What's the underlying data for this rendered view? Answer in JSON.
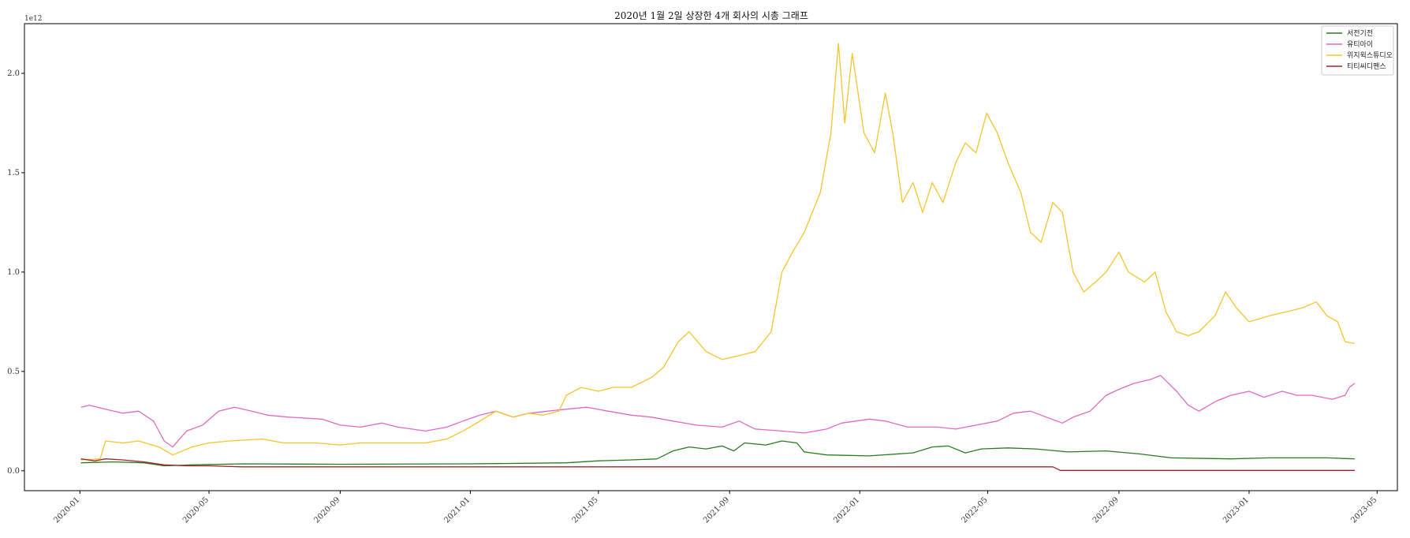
{
  "chart_data": {
    "type": "line",
    "title": "2020년 1월 2일 상장한 4개 회사의 시총 그래프",
    "xlabel": "",
    "ylabel": "",
    "y_offset_label": "1e12",
    "x_ticks": [
      "2020-01",
      "2020-05",
      "2020-09",
      "2021-01",
      "2021-05",
      "2021-09",
      "2022-01",
      "2022-05",
      "2022-09",
      "2023-01",
      "2023-05"
    ],
    "y_ticks": [
      "0.0",
      "0.5",
      "1.0",
      "1.5",
      "2.0"
    ],
    "xlim": [
      "2019-11-10",
      "2023-05-20"
    ],
    "ylim": [
      -0.1,
      2.25
    ],
    "legend_position": "top-right",
    "grid": false,
    "series": [
      {
        "name": "서전기전",
        "color": "#2a7a1f",
        "points": [
          [
            "2020-01-02",
            0.04
          ],
          [
            "2020-02-01",
            0.045
          ],
          [
            "2020-03-01",
            0.04
          ],
          [
            "2020-03-20",
            0.025
          ],
          [
            "2020-04-15",
            0.03
          ],
          [
            "2020-06-01",
            0.035
          ],
          [
            "2020-09-01",
            0.033
          ],
          [
            "2021-01-01",
            0.035
          ],
          [
            "2021-04-01",
            0.04
          ],
          [
            "2021-05-01",
            0.05
          ],
          [
            "2021-06-01",
            0.055
          ],
          [
            "2021-06-25",
            0.06
          ],
          [
            "2021-07-10",
            0.1
          ],
          [
            "2021-07-25",
            0.12
          ],
          [
            "2021-08-10",
            0.11
          ],
          [
            "2021-08-25",
            0.125
          ],
          [
            "2021-09-05",
            0.1
          ],
          [
            "2021-09-15",
            0.14
          ],
          [
            "2021-10-05",
            0.13
          ],
          [
            "2021-10-20",
            0.15
          ],
          [
            "2021-11-03",
            0.14
          ],
          [
            "2021-11-10",
            0.095
          ],
          [
            "2021-12-01",
            0.08
          ],
          [
            "2022-01-10",
            0.075
          ],
          [
            "2022-02-20",
            0.09
          ],
          [
            "2022-03-10",
            0.12
          ],
          [
            "2022-03-25",
            0.125
          ],
          [
            "2022-04-10",
            0.09
          ],
          [
            "2022-04-25",
            0.11
          ],
          [
            "2022-05-20",
            0.115
          ],
          [
            "2022-06-15",
            0.11
          ],
          [
            "2022-07-15",
            0.095
          ],
          [
            "2022-08-20",
            0.1
          ],
          [
            "2022-09-20",
            0.085
          ],
          [
            "2022-10-20",
            0.065
          ],
          [
            "2022-12-15",
            0.06
          ],
          [
            "2023-01-20",
            0.065
          ],
          [
            "2023-03-15",
            0.065
          ],
          [
            "2023-04-10",
            0.06
          ]
        ]
      },
      {
        "name": "유티아이",
        "color": "#e069c2",
        "points": [
          [
            "2020-01-02",
            0.32
          ],
          [
            "2020-01-10",
            0.33
          ],
          [
            "2020-01-25",
            0.31
          ],
          [
            "2020-02-10",
            0.29
          ],
          [
            "2020-02-25",
            0.3
          ],
          [
            "2020-03-10",
            0.25
          ],
          [
            "2020-03-20",
            0.15
          ],
          [
            "2020-03-28",
            0.12
          ],
          [
            "2020-04-10",
            0.2
          ],
          [
            "2020-04-25",
            0.23
          ],
          [
            "2020-05-10",
            0.3
          ],
          [
            "2020-05-25",
            0.32
          ],
          [
            "2020-06-10",
            0.3
          ],
          [
            "2020-06-25",
            0.28
          ],
          [
            "2020-07-15",
            0.27
          ],
          [
            "2020-08-15",
            0.26
          ],
          [
            "2020-09-01",
            0.23
          ],
          [
            "2020-09-20",
            0.22
          ],
          [
            "2020-10-10",
            0.24
          ],
          [
            "2020-10-25",
            0.22
          ],
          [
            "2020-11-20",
            0.2
          ],
          [
            "2020-12-10",
            0.22
          ],
          [
            "2020-12-25",
            0.25
          ],
          [
            "2021-01-10",
            0.28
          ],
          [
            "2021-01-25",
            0.3
          ],
          [
            "2021-02-10",
            0.27
          ],
          [
            "2021-02-25",
            0.29
          ],
          [
            "2021-03-15",
            0.3
          ],
          [
            "2021-04-01",
            0.31
          ],
          [
            "2021-04-20",
            0.32
          ],
          [
            "2021-05-10",
            0.3
          ],
          [
            "2021-06-01",
            0.28
          ],
          [
            "2021-06-20",
            0.27
          ],
          [
            "2021-07-10",
            0.25
          ],
          [
            "2021-08-01",
            0.23
          ],
          [
            "2021-08-25",
            0.22
          ],
          [
            "2021-09-10",
            0.25
          ],
          [
            "2021-09-25",
            0.21
          ],
          [
            "2021-10-20",
            0.2
          ],
          [
            "2021-11-10",
            0.19
          ],
          [
            "2021-12-01",
            0.21
          ],
          [
            "2021-12-15",
            0.24
          ],
          [
            "2022-01-10",
            0.26
          ],
          [
            "2022-01-25",
            0.25
          ],
          [
            "2022-02-15",
            0.22
          ],
          [
            "2022-03-15",
            0.22
          ],
          [
            "2022-04-01",
            0.21
          ],
          [
            "2022-04-20",
            0.23
          ],
          [
            "2022-05-10",
            0.25
          ],
          [
            "2022-05-25",
            0.29
          ],
          [
            "2022-06-10",
            0.3
          ],
          [
            "2022-06-25",
            0.27
          ],
          [
            "2022-07-10",
            0.24
          ],
          [
            "2022-07-20",
            0.27
          ],
          [
            "2022-08-05",
            0.3
          ],
          [
            "2022-08-20",
            0.38
          ],
          [
            "2022-09-01",
            0.41
          ],
          [
            "2022-09-15",
            0.44
          ],
          [
            "2022-10-01",
            0.46
          ],
          [
            "2022-10-10",
            0.48
          ],
          [
            "2022-10-25",
            0.4
          ],
          [
            "2022-11-05",
            0.33
          ],
          [
            "2022-11-15",
            0.3
          ],
          [
            "2022-12-01",
            0.35
          ],
          [
            "2022-12-15",
            0.38
          ],
          [
            "2023-01-01",
            0.4
          ],
          [
            "2023-01-15",
            0.37
          ],
          [
            "2023-02-01",
            0.4
          ],
          [
            "2023-02-15",
            0.38
          ],
          [
            "2023-03-01",
            0.38
          ],
          [
            "2023-03-20",
            0.36
          ],
          [
            "2023-04-01",
            0.38
          ],
          [
            "2023-04-05",
            0.42
          ],
          [
            "2023-04-10",
            0.44
          ]
        ]
      },
      {
        "name": "위지윅스튜디오",
        "color": "#f5c32c",
        "points": [
          [
            "2020-01-02",
            0.055
          ],
          [
            "2020-01-20",
            0.06
          ],
          [
            "2020-01-25",
            0.15
          ],
          [
            "2020-02-10",
            0.14
          ],
          [
            "2020-02-25",
            0.15
          ],
          [
            "2020-03-15",
            0.12
          ],
          [
            "2020-03-28",
            0.08
          ],
          [
            "2020-04-15",
            0.12
          ],
          [
            "2020-05-01",
            0.14
          ],
          [
            "2020-05-20",
            0.15
          ],
          [
            "2020-06-20",
            0.16
          ],
          [
            "2020-07-10",
            0.14
          ],
          [
            "2020-08-10",
            0.14
          ],
          [
            "2020-09-01",
            0.13
          ],
          [
            "2020-09-20",
            0.14
          ],
          [
            "2020-10-20",
            0.14
          ],
          [
            "2020-11-20",
            0.14
          ],
          [
            "2020-12-10",
            0.16
          ],
          [
            "2020-12-25",
            0.2
          ],
          [
            "2021-01-10",
            0.25
          ],
          [
            "2021-01-25",
            0.3
          ],
          [
            "2021-02-10",
            0.27
          ],
          [
            "2021-02-25",
            0.29
          ],
          [
            "2021-03-10",
            0.28
          ],
          [
            "2021-03-25",
            0.3
          ],
          [
            "2021-04-01",
            0.38
          ],
          [
            "2021-04-15",
            0.42
          ],
          [
            "2021-05-01",
            0.4
          ],
          [
            "2021-05-15",
            0.42
          ],
          [
            "2021-06-01",
            0.42
          ],
          [
            "2021-06-20",
            0.47
          ],
          [
            "2021-07-01",
            0.52
          ],
          [
            "2021-07-15",
            0.65
          ],
          [
            "2021-07-25",
            0.7
          ],
          [
            "2021-08-10",
            0.6
          ],
          [
            "2021-08-25",
            0.56
          ],
          [
            "2021-09-10",
            0.58
          ],
          [
            "2021-09-25",
            0.6
          ],
          [
            "2021-10-10",
            0.7
          ],
          [
            "2021-10-20",
            1.0
          ],
          [
            "2021-10-30",
            1.1
          ],
          [
            "2021-11-10",
            1.2
          ],
          [
            "2021-11-25",
            1.4
          ],
          [
            "2021-12-05",
            1.7
          ],
          [
            "2021-12-12",
            2.15
          ],
          [
            "2021-12-18",
            1.75
          ],
          [
            "2021-12-25",
            2.1
          ],
          [
            "2022-01-05",
            1.7
          ],
          [
            "2022-01-15",
            1.6
          ],
          [
            "2022-01-25",
            1.9
          ],
          [
            "2022-02-01",
            1.7
          ],
          [
            "2022-02-10",
            1.35
          ],
          [
            "2022-02-20",
            1.45
          ],
          [
            "2022-03-01",
            1.3
          ],
          [
            "2022-03-10",
            1.45
          ],
          [
            "2022-03-20",
            1.35
          ],
          [
            "2022-04-01",
            1.55
          ],
          [
            "2022-04-10",
            1.65
          ],
          [
            "2022-04-20",
            1.6
          ],
          [
            "2022-04-30",
            1.8
          ],
          [
            "2022-05-10",
            1.7
          ],
          [
            "2022-05-20",
            1.55
          ],
          [
            "2022-06-01",
            1.4
          ],
          [
            "2022-06-10",
            1.2
          ],
          [
            "2022-06-20",
            1.15
          ],
          [
            "2022-07-01",
            1.35
          ],
          [
            "2022-07-10",
            1.3
          ],
          [
            "2022-07-20",
            1.0
          ],
          [
            "2022-07-30",
            0.9
          ],
          [
            "2022-08-10",
            0.95
          ],
          [
            "2022-08-20",
            1.0
          ],
          [
            "2022-09-01",
            1.1
          ],
          [
            "2022-09-10",
            1.0
          ],
          [
            "2022-09-25",
            0.95
          ],
          [
            "2022-10-05",
            1.0
          ],
          [
            "2022-10-15",
            0.8
          ],
          [
            "2022-10-25",
            0.7
          ],
          [
            "2022-11-05",
            0.68
          ],
          [
            "2022-11-15",
            0.7
          ],
          [
            "2022-11-30",
            0.78
          ],
          [
            "2022-12-10",
            0.9
          ],
          [
            "2022-12-20",
            0.82
          ],
          [
            "2023-01-01",
            0.75
          ],
          [
            "2023-01-20",
            0.78
          ],
          [
            "2023-02-05",
            0.8
          ],
          [
            "2023-02-20",
            0.82
          ],
          [
            "2023-03-05",
            0.85
          ],
          [
            "2023-03-15",
            0.78
          ],
          [
            "2023-03-25",
            0.75
          ],
          [
            "2023-04-01",
            0.65
          ],
          [
            "2023-04-10",
            0.64
          ]
        ]
      },
      {
        "name": "티티씨디펜스",
        "color": "#a0242a",
        "points": [
          [
            "2020-01-02",
            0.06
          ],
          [
            "2020-01-15",
            0.05
          ],
          [
            "2020-01-25",
            0.06
          ],
          [
            "2020-02-10",
            0.055
          ],
          [
            "2020-03-01",
            0.045
          ],
          [
            "2020-03-20",
            0.03
          ],
          [
            "2020-04-10",
            0.025
          ],
          [
            "2020-05-01",
            0.025
          ],
          [
            "2020-06-01",
            0.02
          ],
          [
            "2021-01-01",
            0.02
          ],
          [
            "2022-01-01",
            0.02
          ],
          [
            "2022-07-01",
            0.02
          ],
          [
            "2022-07-08",
            0.002
          ],
          [
            "2023-04-10",
            0.002
          ]
        ]
      }
    ]
  }
}
